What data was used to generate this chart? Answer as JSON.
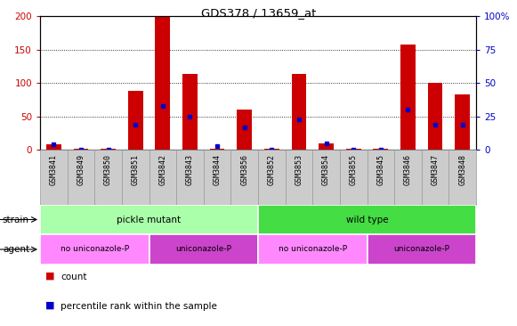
{
  "title": "GDS378 / 13659_at",
  "samples": [
    "GSM3841",
    "GSM3849",
    "GSM3850",
    "GSM3851",
    "GSM3842",
    "GSM3843",
    "GSM3844",
    "GSM3856",
    "GSM3852",
    "GSM3853",
    "GSM3854",
    "GSM3855",
    "GSM3845",
    "GSM3846",
    "GSM3847",
    "GSM3848"
  ],
  "count_values": [
    8,
    1,
    1,
    88,
    200,
    113,
    2,
    60,
    1,
    114,
    9,
    1,
    1,
    157,
    100,
    83
  ],
  "percentile_values": [
    4,
    0,
    0,
    19,
    33,
    25,
    3,
    17,
    0,
    23,
    5,
    0,
    0,
    30,
    19,
    19
  ],
  "ylim_left": [
    0,
    200
  ],
  "ylim_right": [
    0,
    100
  ],
  "left_ticks": [
    0,
    50,
    100,
    150,
    200
  ],
  "right_ticks": [
    0,
    25,
    50,
    75,
    100
  ],
  "left_tick_labels": [
    "0",
    "50",
    "100",
    "150",
    "200"
  ],
  "right_tick_labels": [
    "0",
    "25",
    "50",
    "75",
    "100%"
  ],
  "strain_groups": [
    {
      "label": "pickle mutant",
      "start": 0,
      "end": 8,
      "color": "#aaffaa"
    },
    {
      "label": "wild type",
      "start": 8,
      "end": 16,
      "color": "#44dd44"
    }
  ],
  "agent_groups": [
    {
      "label": "no uniconazole-P",
      "start": 0,
      "end": 4,
      "color": "#ff88ff"
    },
    {
      "label": "uniconazole-P",
      "start": 4,
      "end": 8,
      "color": "#cc44cc"
    },
    {
      "label": "no uniconazole-P",
      "start": 8,
      "end": 12,
      "color": "#ff88ff"
    },
    {
      "label": "uniconazole-P",
      "start": 12,
      "end": 16,
      "color": "#cc44cc"
    }
  ],
  "bar_color": "#cc0000",
  "dot_color": "#0000cc",
  "xlabel_bg": "#cccccc",
  "xlabel_border": "#999999",
  "tick_color_left": "#cc0000",
  "tick_color_right": "#0000cc",
  "grid_ticks": [
    50,
    100,
    150
  ]
}
